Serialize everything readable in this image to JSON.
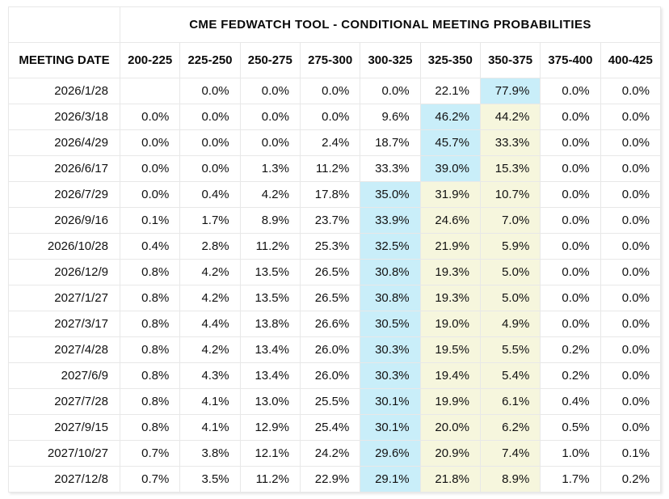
{
  "colors": {
    "highlight_blue": "#c9eef9",
    "highlight_yellow": "#f6f6dd",
    "grid_line": "#e8e8e8",
    "outer_border": "#d9d9d9",
    "header_text": "#0a0a0a",
    "cell_text": "#111111"
  },
  "chart_data": {
    "type": "table",
    "title": "CME FEDWATCH TOOL - CONDITIONAL MEETING PROBABILITIES",
    "columns": [
      "MEETING DATE",
      "200-225",
      "225-250",
      "250-275",
      "275-300",
      "300-325",
      "325-350",
      "350-375",
      "375-400",
      "400-425"
    ],
    "highlight_note": "blue = highest probability cell in row, yellow = highlighted adjacent higher-rate cells, as rendered",
    "rows": [
      {
        "date": "2026/1/28",
        "values": [
          "",
          "0.0%",
          "0.0%",
          "0.0%",
          "0.0%",
          "22.1%",
          "77.9%",
          "0.0%",
          "0.0%"
        ],
        "highlights": [
          "",
          "",
          "",
          "",
          "",
          "",
          "blue",
          "",
          ""
        ]
      },
      {
        "date": "2026/3/18",
        "values": [
          "0.0%",
          "0.0%",
          "0.0%",
          "0.0%",
          "9.6%",
          "46.2%",
          "44.2%",
          "0.0%",
          "0.0%"
        ],
        "highlights": [
          "",
          "",
          "",
          "",
          "",
          "blue",
          "yellow",
          "",
          ""
        ]
      },
      {
        "date": "2026/4/29",
        "values": [
          "0.0%",
          "0.0%",
          "0.0%",
          "2.4%",
          "18.7%",
          "45.7%",
          "33.3%",
          "0.0%",
          "0.0%"
        ],
        "highlights": [
          "",
          "",
          "",
          "",
          "",
          "blue",
          "yellow",
          "",
          ""
        ]
      },
      {
        "date": "2026/6/17",
        "values": [
          "0.0%",
          "0.0%",
          "1.3%",
          "11.2%",
          "33.3%",
          "39.0%",
          "15.3%",
          "0.0%",
          "0.0%"
        ],
        "highlights": [
          "",
          "",
          "",
          "",
          "",
          "blue",
          "yellow",
          "",
          ""
        ]
      },
      {
        "date": "2026/7/29",
        "values": [
          "0.0%",
          "0.4%",
          "4.2%",
          "17.8%",
          "35.0%",
          "31.9%",
          "10.7%",
          "0.0%",
          "0.0%"
        ],
        "highlights": [
          "",
          "",
          "",
          "",
          "blue",
          "yellow",
          "yellow",
          "",
          ""
        ]
      },
      {
        "date": "2026/9/16",
        "values": [
          "0.1%",
          "1.7%",
          "8.9%",
          "23.7%",
          "33.9%",
          "24.6%",
          "7.0%",
          "0.0%",
          "0.0%"
        ],
        "highlights": [
          "",
          "",
          "",
          "",
          "blue",
          "yellow",
          "yellow",
          "",
          ""
        ]
      },
      {
        "date": "2026/10/28",
        "values": [
          "0.4%",
          "2.8%",
          "11.2%",
          "25.3%",
          "32.5%",
          "21.9%",
          "5.9%",
          "0.0%",
          "0.0%"
        ],
        "highlights": [
          "",
          "",
          "",
          "",
          "blue",
          "yellow",
          "yellow",
          "",
          ""
        ]
      },
      {
        "date": "2026/12/9",
        "values": [
          "0.8%",
          "4.2%",
          "13.5%",
          "26.5%",
          "30.8%",
          "19.3%",
          "5.0%",
          "0.0%",
          "0.0%"
        ],
        "highlights": [
          "",
          "",
          "",
          "",
          "blue",
          "yellow",
          "yellow",
          "",
          ""
        ]
      },
      {
        "date": "2027/1/27",
        "values": [
          "0.8%",
          "4.2%",
          "13.5%",
          "26.5%",
          "30.8%",
          "19.3%",
          "5.0%",
          "0.0%",
          "0.0%"
        ],
        "highlights": [
          "",
          "",
          "",
          "",
          "blue",
          "yellow",
          "yellow",
          "",
          ""
        ]
      },
      {
        "date": "2027/3/17",
        "values": [
          "0.8%",
          "4.4%",
          "13.8%",
          "26.6%",
          "30.5%",
          "19.0%",
          "4.9%",
          "0.0%",
          "0.0%"
        ],
        "highlights": [
          "",
          "",
          "",
          "",
          "blue",
          "yellow",
          "yellow",
          "",
          ""
        ]
      },
      {
        "date": "2027/4/28",
        "values": [
          "0.8%",
          "4.2%",
          "13.4%",
          "26.0%",
          "30.3%",
          "19.5%",
          "5.5%",
          "0.2%",
          "0.0%"
        ],
        "highlights": [
          "",
          "",
          "",
          "",
          "blue",
          "yellow",
          "yellow",
          "",
          ""
        ]
      },
      {
        "date": "2027/6/9",
        "values": [
          "0.8%",
          "4.3%",
          "13.4%",
          "26.0%",
          "30.3%",
          "19.4%",
          "5.4%",
          "0.2%",
          "0.0%"
        ],
        "highlights": [
          "",
          "",
          "",
          "",
          "blue",
          "yellow",
          "yellow",
          "",
          ""
        ]
      },
      {
        "date": "2027/7/28",
        "values": [
          "0.8%",
          "4.1%",
          "13.0%",
          "25.5%",
          "30.1%",
          "19.9%",
          "6.1%",
          "0.4%",
          "0.0%"
        ],
        "highlights": [
          "",
          "",
          "",
          "",
          "blue",
          "yellow",
          "yellow",
          "",
          ""
        ]
      },
      {
        "date": "2027/9/15",
        "values": [
          "0.8%",
          "4.1%",
          "12.9%",
          "25.4%",
          "30.1%",
          "20.0%",
          "6.2%",
          "0.5%",
          "0.0%"
        ],
        "highlights": [
          "",
          "",
          "",
          "",
          "blue",
          "yellow",
          "yellow",
          "",
          ""
        ]
      },
      {
        "date": "2027/10/27",
        "values": [
          "0.7%",
          "3.8%",
          "12.1%",
          "24.2%",
          "29.6%",
          "20.9%",
          "7.4%",
          "1.0%",
          "0.1%"
        ],
        "highlights": [
          "",
          "",
          "",
          "",
          "blue",
          "yellow",
          "yellow",
          "",
          ""
        ]
      },
      {
        "date": "2027/12/8",
        "values": [
          "0.7%",
          "3.5%",
          "11.2%",
          "22.9%",
          "29.1%",
          "21.8%",
          "8.9%",
          "1.7%",
          "0.2%"
        ],
        "highlights": [
          "",
          "",
          "",
          "",
          "blue",
          "yellow",
          "yellow",
          "",
          ""
        ]
      }
    ]
  }
}
